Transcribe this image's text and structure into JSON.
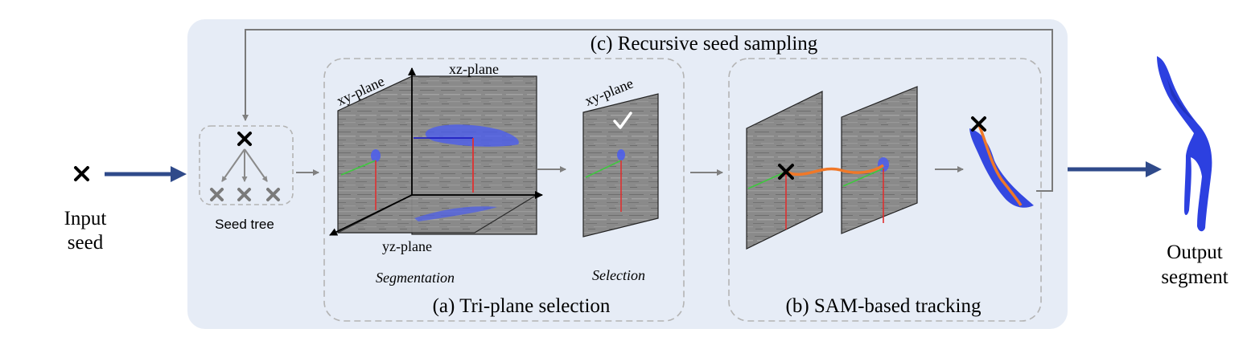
{
  "input": {
    "line1": "Input",
    "line2": "seed"
  },
  "output": {
    "line1": "Output",
    "line2": "segment"
  },
  "recursive_title": "(c) Recursive seed sampling",
  "seed_tree_label": "Seed tree",
  "triplane": {
    "title": "(a) Tri-plane selection",
    "xy_label": "xy-plane",
    "xz_label": "xz-plane",
    "yz_label": "yz-plane",
    "segmentation_label": "Segmentation",
    "selection_label": "Selection",
    "selected_plane_label": "xy-plane"
  },
  "tracking": {
    "title": "(b) SAM-based tracking"
  },
  "colors": {
    "panel_bg": "#e6ecf6",
    "flow_arrow": "#2f4a8a",
    "inner_arrow": "#808080",
    "dashed_border": "#b4b4b4",
    "mask_blue": "#4a5cf0",
    "track_orange": "#f07828",
    "axis_green": "#3ec83e",
    "axis_red": "#e03030",
    "axis_blue": "#2020c0"
  },
  "icons": [
    "cross-icon",
    "check-icon",
    "arrow-icon"
  ]
}
